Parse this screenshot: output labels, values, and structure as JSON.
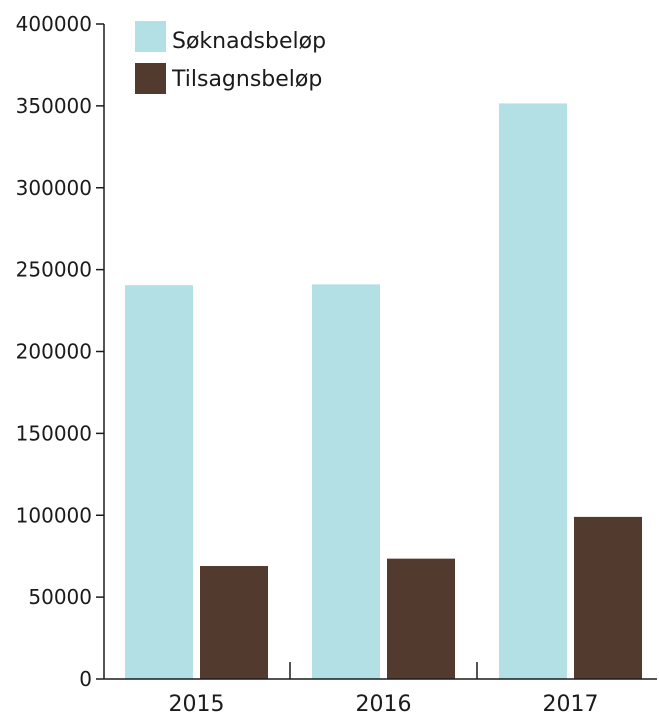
{
  "chart_data": {
    "type": "bar",
    "title": "",
    "xlabel": "",
    "ylabel": "",
    "categories": [
      "2015",
      "2016",
      "2017"
    ],
    "series": [
      {
        "name": "Søknadsbeløp",
        "color": "#b3e0e5",
        "values": [
          240500,
          241000,
          351500
        ]
      },
      {
        "name": "Tilsagnsbeløp",
        "color": "#533a2e",
        "values": [
          69000,
          73500,
          99000
        ]
      }
    ],
    "ylim": [
      0,
      400000
    ],
    "yticks": [
      0,
      50000,
      100000,
      150000,
      200000,
      250000,
      300000,
      350000,
      400000
    ],
    "grid": false,
    "legend_position": "top-left"
  }
}
